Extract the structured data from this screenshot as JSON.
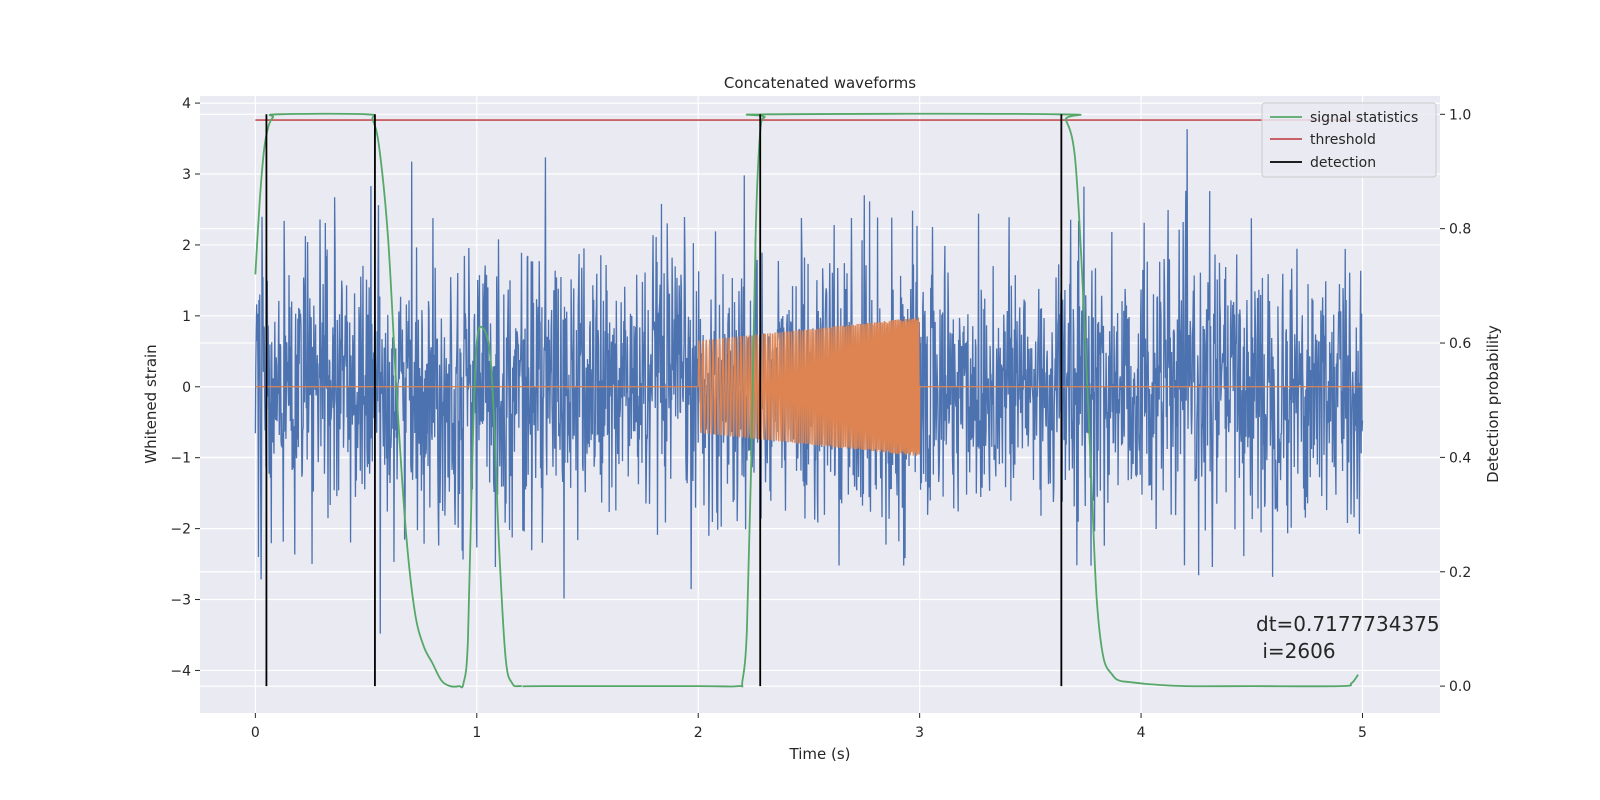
{
  "chart_data": {
    "type": "line",
    "title": "Concatenated waveforms",
    "xlabel": "Time (s)",
    "ylabel": "Whitened strain",
    "y2label": "Detection probability",
    "xlim": [
      -0.25,
      5.35
    ],
    "ylim": [
      -4.6,
      4.1
    ],
    "y2lim": [
      -0.047,
      1.032
    ],
    "xticks": [
      "0",
      "1",
      "2",
      "3",
      "4",
      "5"
    ],
    "xtick_values": [
      0,
      1,
      2,
      3,
      4,
      5
    ],
    "yticks": [
      "−4",
      "−3",
      "−2",
      "−1",
      "0",
      "1",
      "2",
      "3",
      "4"
    ],
    "ytick_values": [
      -4,
      -3,
      -2,
      -1,
      0,
      1,
      2,
      3,
      4
    ],
    "y2ticks": [
      "0.0",
      "0.2",
      "0.4",
      "0.6",
      "0.8",
      "1.0"
    ],
    "y2tick_values": [
      0,
      0.2,
      0.4,
      0.6,
      0.8,
      1.0
    ],
    "grid": true,
    "legend_position": "top-right",
    "colors": {
      "noise": "#4c72b0",
      "signal": "#dd8452",
      "statistics": "#55a868",
      "threshold": "#c44e52",
      "detection": "#000000",
      "background": "#eaeaf2",
      "grid": "#ffffff"
    },
    "series": [
      {
        "name": "",
        "axis": "left",
        "description_kind": "noise",
        "x_range": [
          0,
          5.0
        ],
        "sample_count": 2500,
        "sigma": 0.95,
        "y_min": -4.2,
        "y_max": 3.75
      },
      {
        "name": "",
        "axis": "left",
        "description_kind": "chirp",
        "x": [
          0,
          2.0,
          2.0,
          3.0,
          3.0,
          5.0
        ],
        "baseline": 0,
        "chirp_start": 2.0,
        "chirp_end": 3.0,
        "amp_start": 0.65,
        "amp_end": 0.98
      },
      {
        "name": "signal statistics",
        "axis": "right",
        "x": [
          0.0,
          0.02,
          0.04,
          0.06,
          0.08,
          0.1,
          0.5,
          0.53,
          0.56,
          0.6,
          0.64,
          0.68,
          0.72,
          0.76,
          0.8,
          0.84,
          0.88,
          0.92,
          0.94,
          0.96,
          0.98,
          1.0,
          1.03,
          1.06,
          1.08,
          1.1,
          1.13,
          1.16,
          1.2,
          1.3,
          2.0,
          2.18,
          2.2,
          2.22,
          2.24,
          2.26,
          2.28,
          2.3,
          2.32,
          3.62,
          3.66,
          3.7,
          3.73,
          3.76,
          3.78,
          3.8,
          3.83,
          3.87,
          3.9,
          3.95,
          4.05,
          4.2,
          4.5,
          4.9,
          4.95,
          4.98
        ],
        "y": [
          0.72,
          0.85,
          0.94,
          0.98,
          0.995,
          1.0,
          1.0,
          0.99,
          0.94,
          0.78,
          0.5,
          0.27,
          0.13,
          0.07,
          0.04,
          0.01,
          0.0,
          0.0,
          0.005,
          0.08,
          0.4,
          0.6,
          0.625,
          0.58,
          0.45,
          0.25,
          0.05,
          0.005,
          0.0,
          0.0,
          0.0,
          0.0,
          0.01,
          0.1,
          0.4,
          0.8,
          0.97,
          0.995,
          1.0,
          1.0,
          0.99,
          0.93,
          0.75,
          0.5,
          0.32,
          0.15,
          0.05,
          0.02,
          0.01,
          0.007,
          0.003,
          0.0,
          0.0,
          0.0,
          0.005,
          0.02
        ]
      },
      {
        "name": "threshold",
        "axis": "right",
        "x": [
          0,
          5.0
        ],
        "y": [
          0.99,
          0.99
        ]
      },
      {
        "name": "detection",
        "axis": "right",
        "segments_x": [
          0.05,
          0.54,
          2.28,
          3.64
        ],
        "y_from": 0.0,
        "y_to": 1.0
      }
    ],
    "legend": [
      "signal statistics",
      "threshold",
      "detection"
    ],
    "annotation": {
      "line1": "dt=0.7177734375",
      "line2": " i=2606",
      "x": 4.5,
      "y": 0.11
    }
  }
}
